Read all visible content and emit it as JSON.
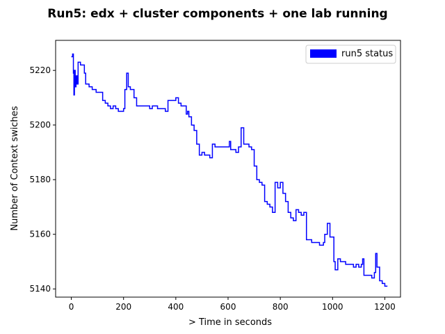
{
  "chart_data": {
    "type": "line",
    "title": "Run5: edx + cluster components + one lab running",
    "xlabel": "> Time  in seconds",
    "ylabel": "Number of Context swiches",
    "xlim": [
      -60,
      1260
    ],
    "ylim": [
      5137,
      5231
    ],
    "xticks": [
      0,
      200,
      400,
      600,
      800,
      1000,
      1200
    ],
    "yticks": [
      5140,
      5160,
      5180,
      5200,
      5220
    ],
    "grid": false,
    "legend_position": "upper right",
    "series": [
      {
        "name": "run5 status",
        "color": "#0000ff",
        "x": [
          0,
          5,
          8,
          10,
          12,
          15,
          18,
          22,
          26,
          30,
          35,
          40,
          45,
          50,
          55,
          62,
          68,
          75,
          80,
          85,
          90,
          95,
          100,
          110,
          120,
          130,
          140,
          150,
          160,
          170,
          180,
          190,
          200,
          205,
          212,
          215,
          218,
          222,
          226,
          230,
          240,
          250,
          260,
          270,
          280,
          290,
          300,
          310,
          320,
          330,
          340,
          350,
          360,
          370,
          380,
          390,
          400,
          410,
          420,
          430,
          440,
          445,
          450,
          460,
          470,
          480,
          490,
          500,
          510,
          520,
          530,
          540,
          550,
          560,
          570,
          580,
          590,
          595,
          600,
          605,
          610,
          615,
          620,
          630,
          640,
          650,
          660,
          670,
          680,
          690,
          700,
          710,
          720,
          730,
          740,
          750,
          760,
          770,
          780,
          790,
          800,
          810,
          820,
          830,
          840,
          850,
          860,
          870,
          880,
          890,
          900,
          910,
          920,
          930,
          940,
          950,
          960,
          965,
          970,
          980,
          990,
          995,
          1000,
          1005,
          1010,
          1020,
          1030,
          1040,
          1050,
          1060,
          1070,
          1080,
          1090,
          1100,
          1110,
          1115,
          1120,
          1130,
          1140,
          1150,
          1160,
          1165,
          1170,
          1180,
          1190,
          1200,
          1210
        ],
        "y": [
          5225,
          5226,
          5219,
          5211,
          5220,
          5214,
          5218,
          5215,
          5223,
          5223,
          5222,
          5222,
          5222,
          5219,
          5215,
          5215,
          5214,
          5214,
          5213,
          5213,
          5213,
          5212,
          5212,
          5212,
          5209,
          5208,
          5207,
          5206,
          5207,
          5206,
          5205,
          5205,
          5206,
          5213,
          5219,
          5219,
          5214,
          5214,
          5213,
          5213,
          5210,
          5207,
          5207,
          5207,
          5207,
          5207,
          5206,
          5207,
          5207,
          5206,
          5206,
          5206,
          5205,
          5209,
          5209,
          5209,
          5210,
          5208,
          5207,
          5207,
          5204,
          5205,
          5203,
          5200,
          5198,
          5193,
          5189,
          5190,
          5189,
          5189,
          5188,
          5193,
          5192,
          5192,
          5192,
          5192,
          5192,
          5192,
          5192,
          5194,
          5191,
          5191,
          5191,
          5190,
          5192,
          5199,
          5193,
          5193,
          5192,
          5191,
          5185,
          5180,
          5179,
          5178,
          5172,
          5171,
          5170,
          5168,
          5179,
          5177,
          5179,
          5175,
          5172,
          5168,
          5166,
          5165,
          5169,
          5168,
          5167,
          5168,
          5158,
          5158,
          5157,
          5157,
          5157,
          5156,
          5156,
          5157,
          5160,
          5164,
          5159,
          5159,
          5159,
          5150,
          5147,
          5151,
          5150,
          5150,
          5149,
          5149,
          5149,
          5148,
          5149,
          5148,
          5149,
          5151,
          5145,
          5145,
          5145,
          5144,
          5146,
          5153,
          5148,
          5143,
          5142,
          5141,
          5141
        ]
      }
    ]
  }
}
